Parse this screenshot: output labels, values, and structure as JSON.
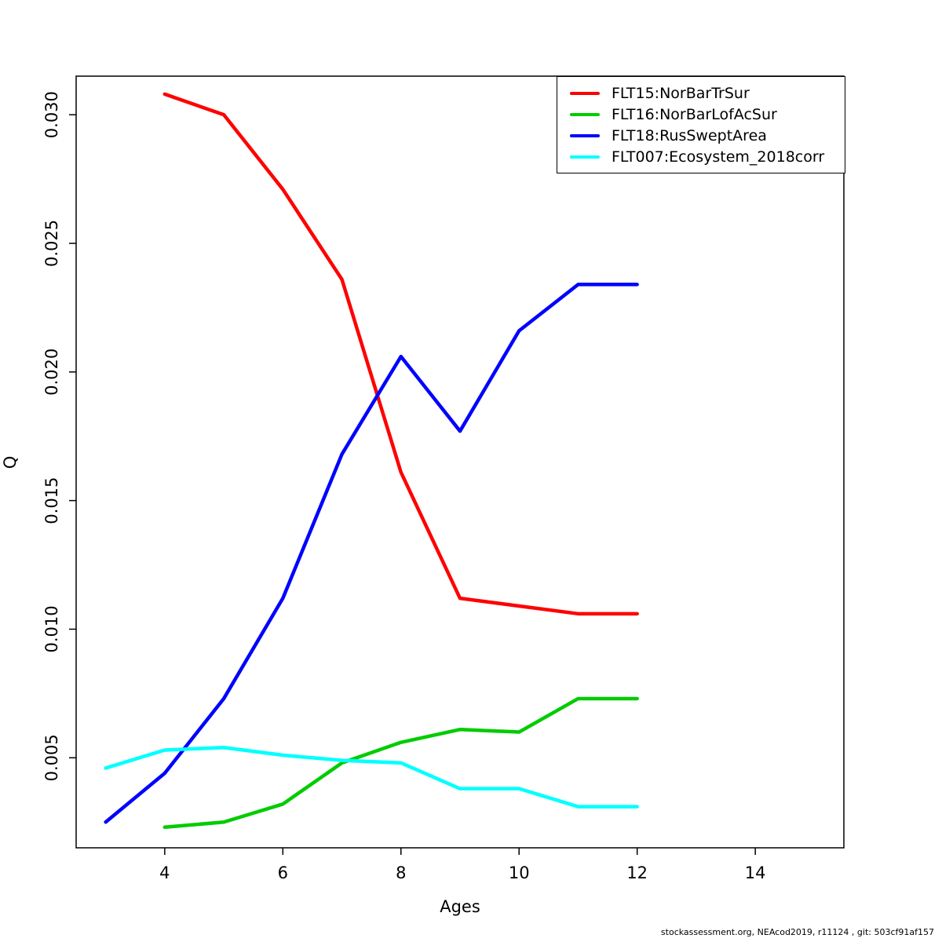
{
  "chart_data": {
    "type": "line",
    "title": "",
    "xlabel": "Ages",
    "ylabel": "Q",
    "xlim": [
      2.5,
      15.5
    ],
    "ylim": [
      0.0015,
      0.0315
    ],
    "x_ticks": [
      4,
      6,
      8,
      10,
      12,
      14
    ],
    "y_ticks": [
      0.005,
      0.01,
      0.015,
      0.02,
      0.025,
      0.03
    ],
    "grid": false,
    "legend_position": "top-right",
    "series": [
      {
        "name": "FLT15:NorBarTrSur",
        "color": "#ff0000",
        "x": [
          4,
          5,
          6,
          7,
          8,
          9,
          10,
          11,
          12
        ],
        "values": [
          0.0308,
          0.03,
          0.0271,
          0.0236,
          0.0161,
          0.0112,
          0.0109,
          0.0106,
          0.0106
        ]
      },
      {
        "name": "FLT16:NorBarLofAcSur",
        "color": "#00cc00",
        "x": [
          4,
          5,
          6,
          7,
          8,
          9,
          10,
          11,
          12
        ],
        "values": [
          0.0023,
          0.0025,
          0.0032,
          0.0048,
          0.0056,
          0.0061,
          0.006,
          0.0073,
          0.0073
        ]
      },
      {
        "name": "FLT18:RusSweptArea",
        "color": "#0000ff",
        "x": [
          3,
          4,
          5,
          6,
          7,
          8,
          9,
          10,
          11,
          12
        ],
        "values": [
          0.0025,
          0.0044,
          0.0073,
          0.0112,
          0.0168,
          0.0206,
          0.0177,
          0.0216,
          0.0234,
          0.0234
        ]
      },
      {
        "name": "FLT007:Ecosystem_2018corr",
        "color": "#00ffff",
        "x": [
          3,
          4,
          5,
          6,
          7,
          8,
          9,
          10,
          11,
          12
        ],
        "values": [
          0.0046,
          0.0053,
          0.0054,
          0.0051,
          0.0049,
          0.0048,
          0.0038,
          0.0038,
          0.0031,
          0.0031
        ]
      }
    ]
  },
  "footer": {
    "credit": "stockassessment.org, NEAcod2019, r11124 , git: 503cf91af157"
  }
}
